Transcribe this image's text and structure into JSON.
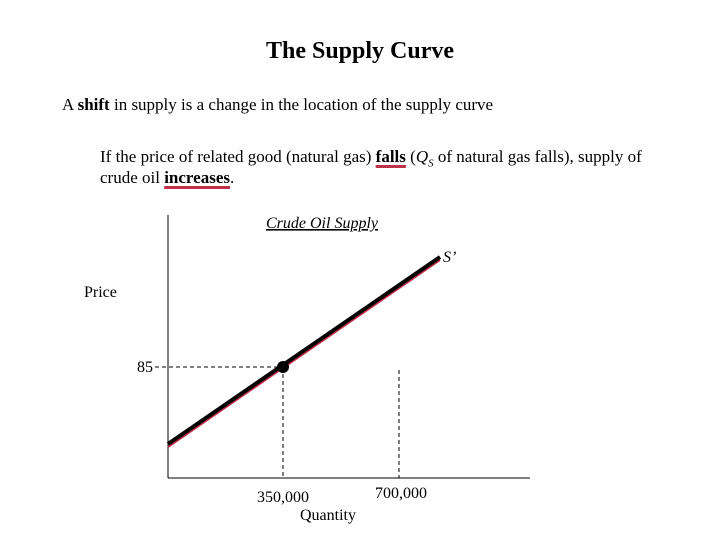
{
  "title": "The Supply Curve",
  "lead": [
    "A ",
    "shift",
    " in supply is a change in the location of the supply curve"
  ],
  "paragraph": {
    "line1": [
      "If the price of related good (natural gas) ",
      "falls",
      " (",
      "Q",
      "S",
      " of natural gas falls), supply of"
    ],
    "line2": [
      "crude oil ",
      "increases",
      "."
    ]
  },
  "graph": {
    "title": "Crude Oil Supply",
    "curve_label": "S’",
    "y_label": "Price",
    "x_label": "Quantity",
    "price_label": "85",
    "quantity_labels": [
      "350,000",
      "700,000"
    ]
  }
}
